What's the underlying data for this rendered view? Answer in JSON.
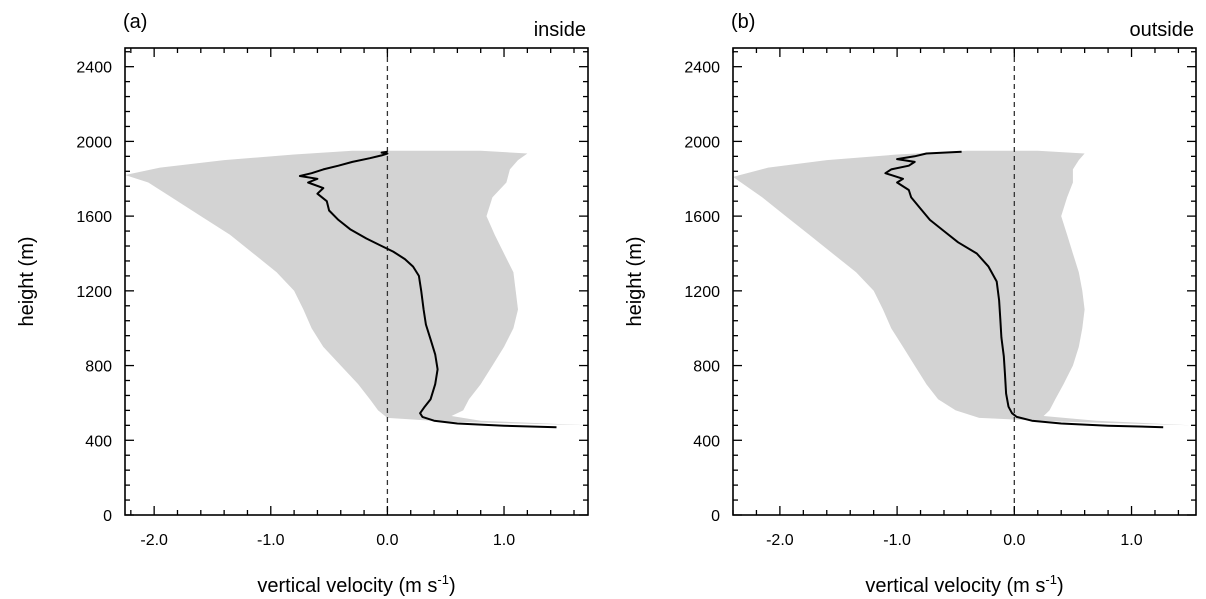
{
  "chart_data": [
    {
      "type": "line",
      "panel_label": "(a)",
      "title": "inside",
      "xlabel": "vertical velocity (m s",
      "xlabel_sup": "-1",
      "xlabel_close": ")",
      "ylabel": "height (m)",
      "xlim": [
        -2.25,
        1.72
      ],
      "ylim": [
        0,
        2500
      ],
      "xticks": [
        -2.0,
        -1.0,
        0.0,
        1.0
      ],
      "xtick_labels": [
        "-2.0",
        "-1.0",
        "0.0",
        "1.0"
      ],
      "yticks": [
        0,
        400,
        800,
        1200,
        1600,
        2000,
        2400
      ],
      "ytick_labels": [
        "0",
        "400",
        "800",
        "1200",
        "1600",
        "2000",
        "2400"
      ],
      "zero_line": true,
      "colors": {
        "mean": "#000000",
        "range": "#d3d3d3",
        "zero_line": "#333333"
      },
      "series": [
        {
          "role": "mean",
          "points": [
            [
              1.45,
              470
            ],
            [
              1.0,
              478
            ],
            [
              0.6,
              490
            ],
            [
              0.4,
              505
            ],
            [
              0.3,
              525
            ],
            [
              0.28,
              545
            ],
            [
              0.32,
              580
            ],
            [
              0.37,
              620
            ],
            [
              0.41,
              700
            ],
            [
              0.43,
              780
            ],
            [
              0.41,
              860
            ],
            [
              0.37,
              940
            ],
            [
              0.33,
              1020
            ],
            [
              0.31,
              1100
            ],
            [
              0.29,
              1200
            ],
            [
              0.27,
              1280
            ],
            [
              0.22,
              1330
            ],
            [
              0.15,
              1370
            ],
            [
              0.05,
              1410
            ],
            [
              -0.05,
              1440
            ],
            [
              -0.18,
              1480
            ],
            [
              -0.32,
              1530
            ],
            [
              -0.42,
              1580
            ],
            [
              -0.5,
              1630
            ],
            [
              -0.52,
              1680
            ],
            [
              -0.6,
              1720
            ],
            [
              -0.55,
              1750
            ],
            [
              -0.68,
              1780
            ],
            [
              -0.6,
              1800
            ],
            [
              -0.75,
              1815
            ],
            [
              -0.65,
              1830
            ],
            [
              -0.55,
              1850
            ],
            [
              -0.42,
              1870
            ],
            [
              -0.3,
              1890
            ],
            [
              -0.15,
              1910
            ],
            [
              -0.05,
              1925
            ],
            [
              0.0,
              1935
            ],
            [
              -0.05,
              1940
            ],
            [
              0.0,
              1945
            ]
          ]
        },
        {
          "role": "range",
          "lower": [
            [
              1.72,
              480
            ],
            [
              0.5,
              500
            ],
            [
              0.0,
              520
            ],
            [
              -0.08,
              560
            ],
            [
              -0.15,
              620
            ],
            [
              -0.25,
              700
            ],
            [
              -0.4,
              800
            ],
            [
              -0.55,
              900
            ],
            [
              -0.65,
              1000
            ],
            [
              -0.72,
              1100
            ],
            [
              -0.8,
              1200
            ],
            [
              -0.95,
              1300
            ],
            [
              -1.15,
              1400
            ],
            [
              -1.35,
              1500
            ],
            [
              -1.6,
              1600
            ],
            [
              -1.85,
              1700
            ],
            [
              -2.05,
              1780
            ],
            [
              -2.25,
              1820
            ],
            [
              -1.95,
              1860
            ],
            [
              -1.4,
              1900
            ],
            [
              -0.8,
              1930
            ],
            [
              -0.3,
              1950
            ]
          ],
          "upper": [
            [
              1.72,
              480
            ],
            [
              0.8,
              505
            ],
            [
              0.55,
              530
            ],
            [
              0.65,
              560
            ],
            [
              0.7,
              620
            ],
            [
              0.8,
              700
            ],
            [
              0.9,
              800
            ],
            [
              1.0,
              900
            ],
            [
              1.08,
              1000
            ],
            [
              1.12,
              1100
            ],
            [
              1.1,
              1200
            ],
            [
              1.08,
              1300
            ],
            [
              1.0,
              1400
            ],
            [
              0.92,
              1500
            ],
            [
              0.85,
              1600
            ],
            [
              0.9,
              1700
            ],
            [
              1.02,
              1780
            ],
            [
              1.05,
              1850
            ],
            [
              1.12,
              1900
            ],
            [
              1.2,
              1935
            ],
            [
              0.8,
              1950
            ]
          ]
        }
      ]
    },
    {
      "type": "line",
      "panel_label": "(b)",
      "title": "outside",
      "xlabel": "vertical velocity (m s",
      "xlabel_sup": "-1",
      "xlabel_close": ")",
      "ylabel": "height (m)",
      "xlim": [
        -2.4,
        1.55
      ],
      "ylim": [
        0,
        2500
      ],
      "xticks": [
        -2.0,
        -1.0,
        0.0,
        1.0
      ],
      "xtick_labels": [
        "-2.0",
        "-1.0",
        "0.0",
        "1.0"
      ],
      "yticks": [
        0,
        400,
        800,
        1200,
        1600,
        2000,
        2400
      ],
      "ytick_labels": [
        "0",
        "400",
        "800",
        "1200",
        "1600",
        "2000",
        "2400"
      ],
      "zero_line": true,
      "colors": {
        "mean": "#000000",
        "range": "#d3d3d3",
        "zero_line": "#333333"
      },
      "series": [
        {
          "role": "mean",
          "points": [
            [
              1.27,
              470
            ],
            [
              0.8,
              478
            ],
            [
              0.4,
              490
            ],
            [
              0.15,
              505
            ],
            [
              0.02,
              525
            ],
            [
              -0.02,
              545
            ],
            [
              -0.05,
              580
            ],
            [
              -0.07,
              650
            ],
            [
              -0.08,
              760
            ],
            [
              -0.09,
              850
            ],
            [
              -0.11,
              950
            ],
            [
              -0.12,
              1050
            ],
            [
              -0.13,
              1150
            ],
            [
              -0.15,
              1250
            ],
            [
              -0.22,
              1330
            ],
            [
              -0.32,
              1400
            ],
            [
              -0.48,
              1460
            ],
            [
              -0.6,
              1520
            ],
            [
              -0.72,
              1580
            ],
            [
              -0.8,
              1640
            ],
            [
              -0.88,
              1700
            ],
            [
              -0.9,
              1740
            ],
            [
              -1.0,
              1780
            ],
            [
              -0.95,
              1800
            ],
            [
              -1.1,
              1830
            ],
            [
              -1.05,
              1850
            ],
            [
              -0.9,
              1870
            ],
            [
              -0.85,
              1890
            ],
            [
              -1.0,
              1905
            ],
            [
              -0.85,
              1920
            ],
            [
              -0.75,
              1935
            ],
            [
              -0.45,
              1945
            ]
          ]
        },
        {
          "role": "range",
          "lower": [
            [
              1.5,
              480
            ],
            [
              0.4,
              500
            ],
            [
              -0.3,
              520
            ],
            [
              -0.5,
              560
            ],
            [
              -0.65,
              620
            ],
            [
              -0.75,
              700
            ],
            [
              -0.85,
              800
            ],
            [
              -0.95,
              900
            ],
            [
              -1.05,
              1000
            ],
            [
              -1.12,
              1100
            ],
            [
              -1.2,
              1200
            ],
            [
              -1.35,
              1300
            ],
            [
              -1.55,
              1400
            ],
            [
              -1.75,
              1500
            ],
            [
              -1.95,
              1600
            ],
            [
              -2.15,
              1700
            ],
            [
              -2.4,
              1810
            ],
            [
              -2.1,
              1860
            ],
            [
              -1.6,
              1900
            ],
            [
              -1.0,
              1930
            ],
            [
              -0.4,
              1950
            ]
          ],
          "upper": [
            [
              1.5,
              480
            ],
            [
              0.7,
              505
            ],
            [
              0.25,
              530
            ],
            [
              0.3,
              560
            ],
            [
              0.35,
              620
            ],
            [
              0.42,
              700
            ],
            [
              0.5,
              800
            ],
            [
              0.55,
              900
            ],
            [
              0.58,
              1000
            ],
            [
              0.6,
              1100
            ],
            [
              0.58,
              1200
            ],
            [
              0.55,
              1300
            ],
            [
              0.5,
              1400
            ],
            [
              0.45,
              1500
            ],
            [
              0.4,
              1600
            ],
            [
              0.45,
              1700
            ],
            [
              0.5,
              1780
            ],
            [
              0.5,
              1850
            ],
            [
              0.55,
              1900
            ],
            [
              0.6,
              1935
            ],
            [
              0.2,
              1950
            ]
          ]
        }
      ]
    }
  ]
}
